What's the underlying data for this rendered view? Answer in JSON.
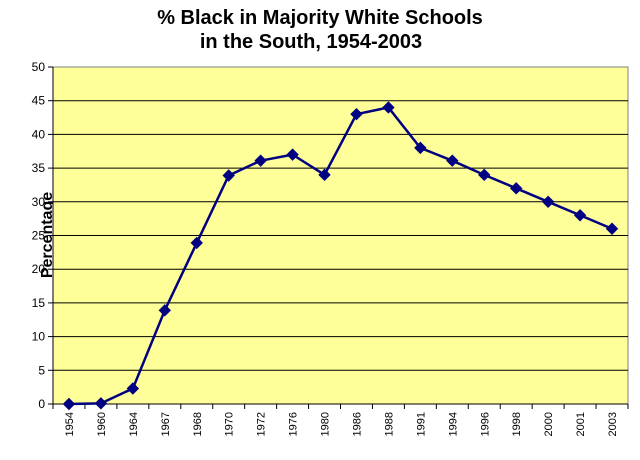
{
  "chart_data": {
    "type": "line",
    "title": [
      "% Black in Majority White Schools",
      "in the South, 1954-2003"
    ],
    "xlabel": "",
    "ylabel": "Percentage",
    "categories": [
      "1954",
      "1960",
      "1964",
      "1967",
      "1968",
      "1970",
      "1972",
      "1976",
      "1980",
      "1986",
      "1988",
      "1991",
      "1994",
      "1996",
      "1998",
      "2000",
      "2001",
      "2003"
    ],
    "series": [
      {
        "values": [
          0,
          0.1,
          2.3,
          13.9,
          23.9,
          33.9,
          36.1,
          37,
          34,
          43,
          44,
          38,
          36.1,
          34,
          32,
          30,
          28,
          26
        ]
      }
    ],
    "ylim": [
      0,
      50
    ],
    "yticks": [
      0,
      5,
      10,
      15,
      20,
      25,
      30,
      35,
      40,
      45,
      50
    ],
    "grid": true,
    "legend": "none",
    "colors": {
      "plot_background": "#ffff99",
      "line": "#000080",
      "marker": "#000080",
      "grid": "#000000"
    }
  }
}
